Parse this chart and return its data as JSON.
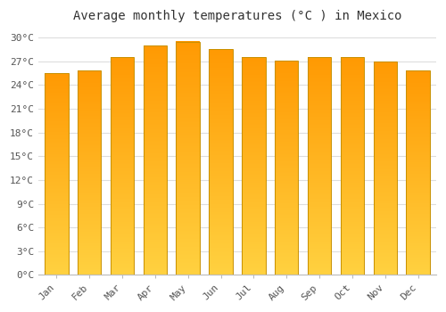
{
  "title": "Average monthly temperatures (°C ) in Mexico",
  "months": [
    "Jan",
    "Feb",
    "Mar",
    "Apr",
    "May",
    "Jun",
    "Jul",
    "Aug",
    "Sep",
    "Oct",
    "Nov",
    "Dec"
  ],
  "values": [
    25.5,
    25.8,
    27.5,
    29.0,
    29.5,
    28.5,
    27.5,
    27.1,
    27.5,
    27.5,
    27.0,
    25.8
  ],
  "bar_color_bottom": "#FFD060",
  "bar_color_top": "#FFA500",
  "background_color": "#FFFFFF",
  "grid_color": "#DDDDDD",
  "ylim": [
    0,
    31
  ],
  "ytick_values": [
    0,
    3,
    6,
    9,
    12,
    15,
    18,
    21,
    24,
    27,
    30
  ],
  "title_fontsize": 10,
  "tick_fontsize": 8,
  "bar_edge_color": "#C89000",
  "bar_width": 0.72
}
